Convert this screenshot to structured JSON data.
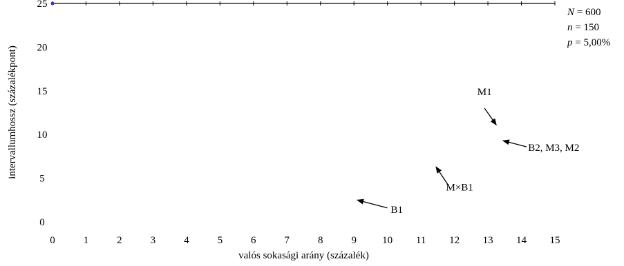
{
  "chart_data": {
    "type": "line",
    "title": "",
    "xlabel": "valós sokasági arány (százalék)",
    "ylabel": "intervallumhossz (százalékpont)",
    "xlim": [
      0,
      15
    ],
    "ylim": [
      0,
      25
    ],
    "x_ticks": [
      "0",
      "1",
      "2",
      "3",
      "4",
      "5",
      "6",
      "7",
      "8",
      "9",
      "10",
      "11",
      "12",
      "13",
      "14",
      "15"
    ],
    "y_ticks": [
      "0",
      "5",
      "10",
      "15",
      "20",
      "25"
    ],
    "grid": false,
    "legend": "none",
    "series": [
      {
        "values_x": [
          0
        ],
        "values_y": [
          25
        ],
        "color": "#3333cc"
      }
    ],
    "parameters": [
      {
        "var": "N",
        "text": " = 600"
      },
      {
        "var": "n",
        "text": " = 150"
      },
      {
        "var": "p",
        "text": " = 5,00%"
      }
    ],
    "annotations": [
      {
        "text": "M1",
        "label_x": 12.9,
        "label_y": 14.9,
        "arrow_from": [
          12.9,
          13.0
        ],
        "arrow_to": [
          13.25,
          11.1
        ],
        "anchor": "middle"
      },
      {
        "text": "B2, M3, M2",
        "label_x": 14.2,
        "label_y": 8.5,
        "arrow_from": [
          14.15,
          8.6
        ],
        "arrow_to": [
          13.45,
          9.3
        ],
        "anchor": "start"
      },
      {
        "text": "M×B1",
        "label_x": 11.75,
        "label_y": 4.0,
        "arrow_from": [
          11.8,
          4.3
        ],
        "arrow_to": [
          11.45,
          6.3
        ],
        "anchor": "start"
      },
      {
        "text": "B1",
        "label_x": 10.1,
        "label_y": 1.4,
        "arrow_from": [
          10.0,
          1.6
        ],
        "arrow_to": [
          9.1,
          2.5
        ],
        "anchor": "start"
      }
    ]
  }
}
